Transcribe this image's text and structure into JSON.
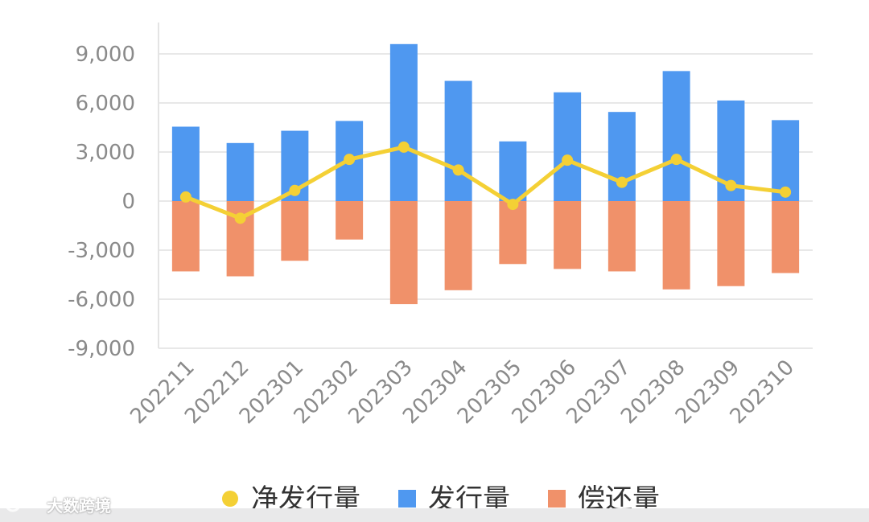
{
  "chart_data": {
    "type": "bar",
    "categories": [
      "202211",
      "202212",
      "202301",
      "202302",
      "202303",
      "202304",
      "202305",
      "202306",
      "202307",
      "202308",
      "202309",
      "202310"
    ],
    "series": [
      {
        "name": "发行量",
        "type": "bar",
        "color": "#4f98f0",
        "values": [
          4550,
          3550,
          4300,
          4900,
          9600,
          7350,
          3650,
          6650,
          5450,
          7950,
          6150,
          4950
        ]
      },
      {
        "name": "偿还量",
        "type": "bar",
        "color": "#f0916a",
        "values": [
          -4300,
          -4600,
          -3650,
          -2350,
          -6300,
          -5450,
          -3850,
          -4150,
          -4300,
          -5400,
          -5200,
          -4400
        ]
      },
      {
        "name": "净发行量",
        "type": "line",
        "color": "#f4d035",
        "values": [
          250,
          -1050,
          650,
          2550,
          3300,
          1900,
          -200,
          2500,
          1150,
          2550,
          950,
          550
        ]
      }
    ],
    "yticks": [
      9000,
      6000,
      3000,
      0,
      -3000,
      -6000,
      -9000
    ],
    "ytick_labels": [
      "9,000",
      "6,000",
      "3,000",
      "0",
      "-3,000",
      "-6,000",
      "-9,000"
    ],
    "ylim": [
      -9000,
      9000
    ],
    "grid": true,
    "legend_position": "bottom",
    "legend": [
      {
        "label": "净发行量",
        "marker": "dot",
        "color": "#f4d035"
      },
      {
        "label": "发行量",
        "marker": "square",
        "color": "#4f98f0"
      },
      {
        "label": "偿还量",
        "marker": "square",
        "color": "#f0916a"
      }
    ]
  },
  "watermark": {
    "text": "大数跨境"
  }
}
